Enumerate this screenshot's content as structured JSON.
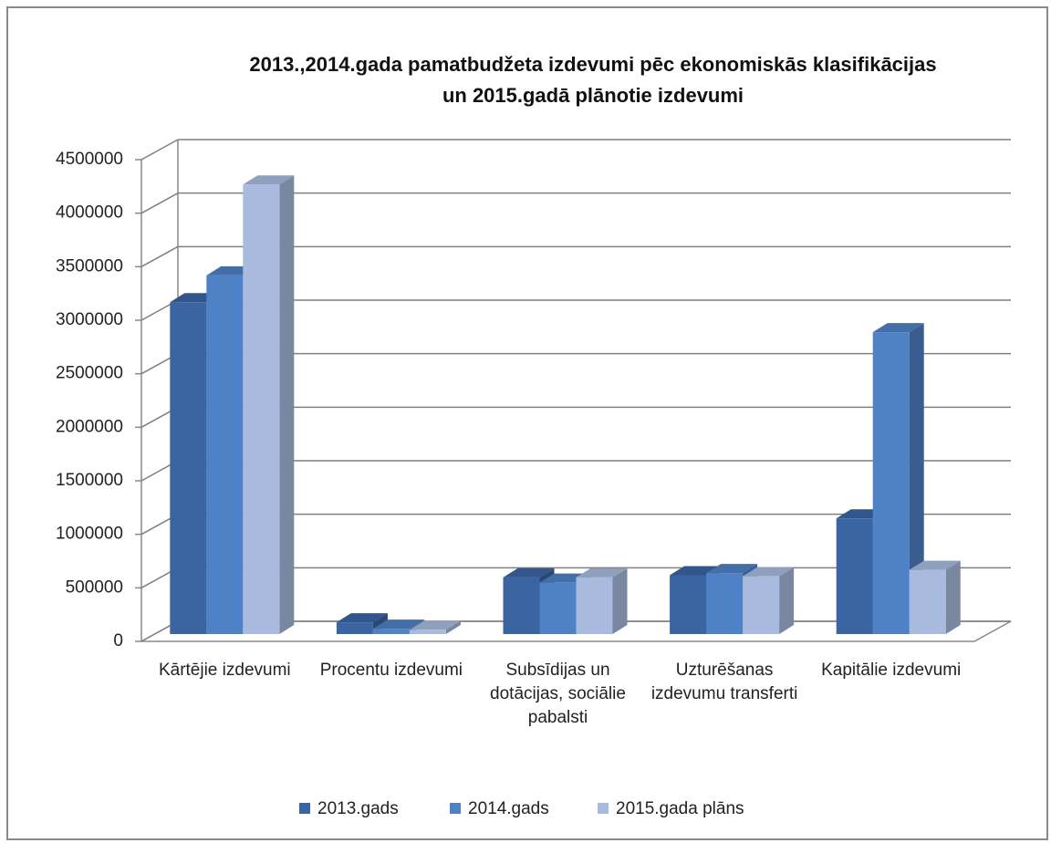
{
  "chart_data": {
    "type": "bar3d",
    "title": [
      "2013.,2014.gada pamatbudžeta izdevumi pēc ekonomiskās klasifikācijas",
      "un 2015.gadā plānotie izdevumi"
    ],
    "categories": [
      "Kārtējie izdevumi",
      "Procentu izdevumi",
      "Subsīdijas un dotācijas, sociālie pabalsti",
      "Uzturēšanas izdevumu transferti",
      "Kapitālie izdevumi"
    ],
    "series": [
      {
        "name": "2013.gads",
        "color": "#3b64a3",
        "values": [
          3100000,
          110000,
          530000,
          550000,
          1080000
        ]
      },
      {
        "name": "2014.gads",
        "color": "#4f81c6",
        "values": [
          3350000,
          50000,
          480000,
          570000,
          2820000
        ]
      },
      {
        "name": "2015.gada plāns",
        "color": "#a8bbdf",
        "values": [
          4200000,
          40000,
          530000,
          540000,
          600000
        ]
      }
    ],
    "ylim": [
      0,
      4500000
    ],
    "yticks": [
      0,
      500000,
      1000000,
      1500000,
      2000000,
      2500000,
      3000000,
      3500000,
      4000000,
      4500000
    ],
    "grid": true
  }
}
